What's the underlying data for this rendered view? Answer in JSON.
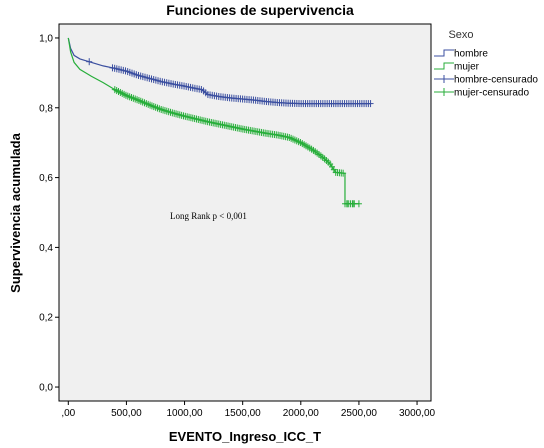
{
  "chart_data": {
    "type": "line",
    "title": "Funciones de supervivencia",
    "xlabel": "EVENTO_Ingreso_ICC_T",
    "ylabel": "Supervivencia acumulada",
    "xlim": [
      -80,
      3120
    ],
    "ylim": [
      -0.04,
      1.04
    ],
    "x_ticks": [
      0,
      500,
      1000,
      1500,
      2000,
      2500,
      3000
    ],
    "x_tick_labels": [
      ",00",
      "500,00",
      "1000,00",
      "1500,00",
      "2000,00",
      "2500,00",
      "3000,00"
    ],
    "y_ticks": [
      0,
      0.2,
      0.4,
      0.6,
      0.8,
      1.0
    ],
    "y_tick_labels": [
      "0,0",
      "0,2",
      "0,4",
      "0,6",
      "0,8",
      "1,0"
    ],
    "grid": false,
    "legend": {
      "title": "Sexo",
      "placement": "right",
      "entries": [
        "hombre",
        "mujer",
        "hombre-censurado",
        "mujer-censurado"
      ]
    },
    "annotation": "Long Rank p < 0,001",
    "colors": {
      "hombre": "#3b4fa0",
      "mujer": "#27ae3a",
      "plot_bg": "#f0f0f0"
    },
    "series": [
      {
        "name": "hombre",
        "points": [
          [
            0,
            1.0
          ],
          [
            20,
            0.97
          ],
          [
            50,
            0.95
          ],
          [
            100,
            0.94
          ],
          [
            200,
            0.93
          ],
          [
            300,
            0.92
          ],
          [
            400,
            0.913
          ],
          [
            500,
            0.905
          ],
          [
            600,
            0.893
          ],
          [
            700,
            0.884
          ],
          [
            800,
            0.875
          ],
          [
            900,
            0.868
          ],
          [
            1000,
            0.862
          ],
          [
            1100,
            0.855
          ],
          [
            1150,
            0.852
          ],
          [
            1200,
            0.838
          ],
          [
            1300,
            0.832
          ],
          [
            1400,
            0.828
          ],
          [
            1500,
            0.825
          ],
          [
            1600,
            0.822
          ],
          [
            1700,
            0.818
          ],
          [
            1800,
            0.815
          ],
          [
            1900,
            0.813
          ],
          [
            2000,
            0.812
          ],
          [
            2200,
            0.812
          ],
          [
            2400,
            0.812
          ],
          [
            2600,
            0.812
          ]
        ]
      },
      {
        "name": "mujer",
        "points": [
          [
            0,
            1.0
          ],
          [
            20,
            0.96
          ],
          [
            50,
            0.93
          ],
          [
            100,
            0.91
          ],
          [
            150,
            0.9
          ],
          [
            200,
            0.89
          ],
          [
            300,
            0.872
          ],
          [
            400,
            0.852
          ],
          [
            500,
            0.835
          ],
          [
            600,
            0.822
          ],
          [
            700,
            0.808
          ],
          [
            800,
            0.795
          ],
          [
            900,
            0.785
          ],
          [
            1000,
            0.776
          ],
          [
            1100,
            0.768
          ],
          [
            1200,
            0.76
          ],
          [
            1300,
            0.753
          ],
          [
            1400,
            0.746
          ],
          [
            1500,
            0.739
          ],
          [
            1600,
            0.733
          ],
          [
            1700,
            0.727
          ],
          [
            1800,
            0.722
          ],
          [
            1900,
            0.715
          ],
          [
            2000,
            0.7
          ],
          [
            2100,
            0.68
          ],
          [
            2150,
            0.668
          ],
          [
            2200,
            0.655
          ],
          [
            2250,
            0.64
          ],
          [
            2300,
            0.615
          ],
          [
            2380,
            0.612
          ],
          [
            2380,
            0.525
          ],
          [
            2500,
            0.525
          ]
        ]
      }
    ],
    "censored": [
      {
        "name": "hombre-censurado",
        "x_start": 380,
        "x_end": 2600,
        "count": 120,
        "extra_x": [
          180
        ]
      },
      {
        "name": "mujer-censurado",
        "x_start": 400,
        "x_end": 2460,
        "count": 130,
        "extra_x": [
          2400,
          2450,
          2500
        ]
      }
    ]
  }
}
